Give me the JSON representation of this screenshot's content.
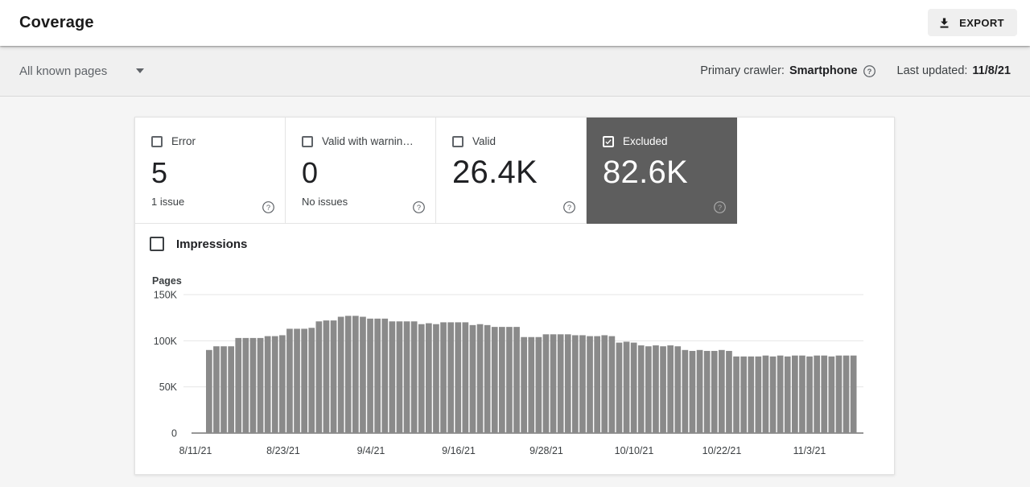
{
  "header": {
    "title": "Coverage",
    "export_label": "EXPORT"
  },
  "filter_bar": {
    "scope_label": "All known pages",
    "primary_crawler_label": "Primary crawler:",
    "primary_crawler_value": "Smartphone",
    "last_updated_label": "Last updated:",
    "last_updated_value": "11/8/21"
  },
  "tiles": [
    {
      "label": "Error",
      "value": "5",
      "sub": "1 issue",
      "checked": false,
      "selected": false
    },
    {
      "label": "Valid with warnin…",
      "value": "0",
      "sub": "No issues",
      "checked": false,
      "selected": false
    },
    {
      "label": "Valid",
      "value": "26.4K",
      "sub": "",
      "checked": false,
      "selected": false
    },
    {
      "label": "Excluded",
      "value": "82.6K",
      "sub": "",
      "checked": true,
      "selected": true
    }
  ],
  "impressions": {
    "label": "Impressions",
    "checked": false
  },
  "colors": {
    "selected_tile_bg": "#5e5e5e",
    "bar_color": "#8a8a8a",
    "gridline": "#e6e6e6",
    "baseline": "#757575",
    "tick_text": "#3c4043"
  },
  "chart_data": {
    "type": "bar",
    "title": "",
    "ylabel": "Pages",
    "unit": "K",
    "ylim": [
      0,
      150000
    ],
    "ytick_labels": [
      "0",
      "50K",
      "100K",
      "150K"
    ],
    "ytick_values_thousands": [
      0,
      50,
      100,
      150
    ],
    "x_tick_labels": [
      "8/11/21",
      "8/23/21",
      "9/4/21",
      "9/16/21",
      "9/28/21",
      "10/10/21",
      "10/22/21",
      "11/3/21"
    ],
    "series_name": "Excluded pages",
    "grid": true,
    "legend": "none",
    "values_thousands": [
      90,
      94,
      94,
      94,
      103,
      103,
      103,
      103,
      105,
      105,
      106,
      113,
      113,
      113,
      114,
      121,
      122,
      122,
      126,
      127,
      127,
      126,
      124,
      124,
      124,
      121,
      121,
      121,
      121,
      118,
      119,
      118,
      120,
      120,
      120,
      120,
      117,
      118,
      117,
      115,
      115,
      115,
      115,
      104,
      104,
      104,
      107,
      107,
      107,
      107,
      106,
      106,
      105,
      105,
      106,
      105,
      98,
      99,
      98,
      95,
      94,
      95,
      94,
      95,
      94,
      90,
      89,
      90,
      89,
      89,
      90,
      89,
      83,
      83,
      83,
      83,
      84,
      83,
      84,
      83,
      84,
      84,
      83,
      84,
      84,
      83,
      84,
      84,
      84
    ]
  }
}
